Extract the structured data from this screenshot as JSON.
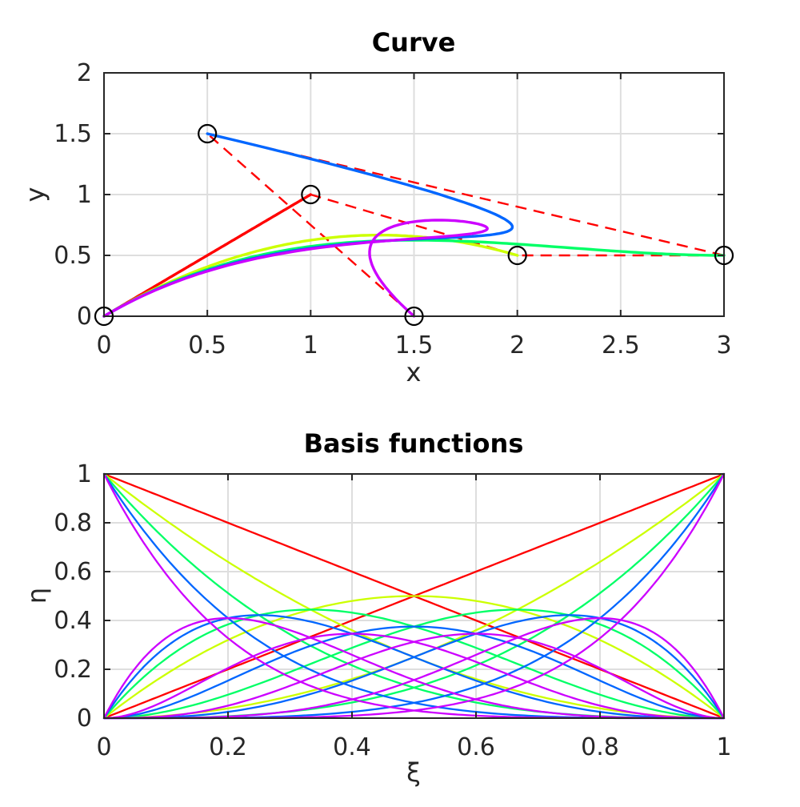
{
  "figure": {
    "background": "#FFFFFF",
    "frame_color": "#262626",
    "grid_color": "#DEDEDE",
    "marker_color": "#000000"
  },
  "chart_data": [
    {
      "type": "line",
      "title": "Curve",
      "xlabel": "x",
      "ylabel": "y",
      "xlim": [
        0,
        3
      ],
      "ylim": [
        0,
        2
      ],
      "grid": true,
      "xticks": {
        "values": [
          0,
          0.5,
          1,
          1.5,
          2,
          2.5,
          3
        ],
        "labels": [
          "0",
          "0.5",
          "1",
          "1.5",
          "2",
          "2.5",
          "3"
        ]
      },
      "yticks": {
        "values": [
          0,
          0.5,
          1,
          1.5,
          2
        ],
        "labels": [
          "0",
          "0.5",
          "1",
          "1.5",
          "2"
        ]
      },
      "control_points": [
        [
          0,
          0
        ],
        [
          1,
          1
        ],
        [
          2,
          0.5
        ],
        [
          3,
          0.5
        ],
        [
          0.5,
          1.5
        ],
        [
          1.5,
          0
        ]
      ],
      "control_polygon": {
        "color": "#FF0000",
        "style": "dashed"
      },
      "marker": {
        "shape": "circle",
        "color": "#000000",
        "radius_px": 11
      },
      "series": [
        {
          "curve": "bezier",
          "degree": 1,
          "color": "#FF0000"
        },
        {
          "curve": "bezier",
          "degree": 2,
          "color": "#CCFF00"
        },
        {
          "curve": "bezier",
          "degree": 3,
          "color": "#00FF66"
        },
        {
          "curve": "bezier",
          "degree": 4,
          "color": "#0066FF"
        },
        {
          "curve": "bezier",
          "degree": 5,
          "color": "#CC00FF"
        }
      ]
    },
    {
      "type": "line",
      "title": "Basis functions",
      "xlabel": "ξ",
      "ylabel": "η",
      "xlim": [
        0,
        1
      ],
      "ylim": [
        0,
        1
      ],
      "grid": true,
      "xticks": {
        "values": [
          0,
          0.2,
          0.4,
          0.6,
          0.8,
          1
        ],
        "labels": [
          "0",
          "0.2",
          "0.4",
          "0.6",
          "0.8",
          "1"
        ]
      },
      "yticks": {
        "values": [
          0,
          0.2,
          0.4,
          0.6,
          0.8,
          1
        ],
        "labels": [
          "0",
          "0.2",
          "0.4",
          "0.6",
          "0.8",
          "1"
        ]
      },
      "basis": "bernstein",
      "series": [
        {
          "basis": "bernstein",
          "degree": 1,
          "color": "#FF0000"
        },
        {
          "basis": "bernstein",
          "degree": 2,
          "color": "#CCFF00"
        },
        {
          "basis": "bernstein",
          "degree": 3,
          "color": "#00FF66"
        },
        {
          "basis": "bernstein",
          "degree": 4,
          "color": "#0066FF"
        },
        {
          "basis": "bernstein",
          "degree": 5,
          "color": "#CC00FF"
        }
      ]
    }
  ]
}
